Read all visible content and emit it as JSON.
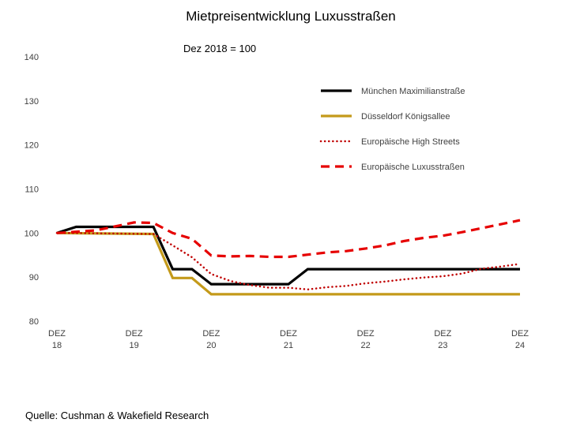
{
  "chart_data": {
    "type": "line",
    "title": "Mietpreisentwicklung Luxusstraßen",
    "subtitle": "Dez 2018 = 100",
    "xlabel": "",
    "ylabel": "",
    "ylim": [
      80,
      140
    ],
    "yticks": [
      80,
      90,
      100,
      110,
      120,
      130,
      140
    ],
    "xlim": [
      2018.917,
      2024.917
    ],
    "xticks": [
      {
        "x": 2018.917,
        "line1": "DEZ",
        "line2": "18"
      },
      {
        "x": 2019.917,
        "line1": "DEZ",
        "line2": "19"
      },
      {
        "x": 2020.917,
        "line1": "DEZ",
        "line2": "20"
      },
      {
        "x": 2021.917,
        "line1": "DEZ",
        "line2": "21"
      },
      {
        "x": 2022.917,
        "line1": "DEZ",
        "line2": "22"
      },
      {
        "x": 2023.917,
        "line1": "DEZ",
        "line2": "23"
      },
      {
        "x": 2024.917,
        "line1": "DEZ",
        "line2": "24"
      }
    ],
    "grid": false,
    "legend_position": "top-right",
    "series": [
      {
        "name": "München Maximilianstraße",
        "color": "#000000",
        "style": "solid",
        "points": [
          [
            2018.917,
            100.0
          ],
          [
            2019.167,
            101.4
          ],
          [
            2020.167,
            101.4
          ],
          [
            2020.417,
            91.8
          ],
          [
            2020.667,
            91.8
          ],
          [
            2020.917,
            88.4
          ],
          [
            2021.917,
            88.4
          ],
          [
            2022.167,
            91.8
          ],
          [
            2024.917,
            91.8
          ]
        ]
      },
      {
        "name": "Düsseldorf Königsallee",
        "color": "#C49A1A",
        "style": "solid",
        "points": [
          [
            2018.917,
            100.0
          ],
          [
            2020.167,
            99.8
          ],
          [
            2020.417,
            89.8
          ],
          [
            2020.667,
            89.8
          ],
          [
            2020.917,
            86.1
          ],
          [
            2024.917,
            86.1
          ]
        ]
      },
      {
        "name": "Europäische High Streets",
        "color": "#C00000",
        "style": "dotted",
        "points": [
          [
            2018.917,
            100.0
          ],
          [
            2019.167,
            100.0
          ],
          [
            2020.167,
            99.8
          ],
          [
            2020.417,
            97.2
          ],
          [
            2020.667,
            94.5
          ],
          [
            2020.917,
            90.7
          ],
          [
            2021.167,
            89.1
          ],
          [
            2021.417,
            88.2
          ],
          [
            2021.667,
            87.6
          ],
          [
            2021.917,
            87.6
          ],
          [
            2022.167,
            87.2
          ],
          [
            2022.417,
            87.7
          ],
          [
            2022.667,
            88.0
          ],
          [
            2022.917,
            88.6
          ],
          [
            2023.167,
            89.0
          ],
          [
            2023.417,
            89.5
          ],
          [
            2023.667,
            89.9
          ],
          [
            2023.917,
            90.2
          ],
          [
            2024.167,
            90.8
          ],
          [
            2024.417,
            91.9
          ],
          [
            2024.667,
            92.4
          ],
          [
            2024.917,
            93.0
          ]
        ]
      },
      {
        "name": "Europäische Luxusstraßen",
        "color": "#E60000",
        "style": "dashed",
        "points": [
          [
            2018.917,
            100.0
          ],
          [
            2019.167,
            100.3
          ],
          [
            2019.417,
            100.6
          ],
          [
            2019.667,
            101.5
          ],
          [
            2019.917,
            102.4
          ],
          [
            2020.167,
            102.3
          ],
          [
            2020.417,
            100.0
          ],
          [
            2020.667,
            98.7
          ],
          [
            2020.917,
            94.9
          ],
          [
            2021.167,
            94.7
          ],
          [
            2021.417,
            94.8
          ],
          [
            2021.667,
            94.6
          ],
          [
            2021.917,
            94.6
          ],
          [
            2022.167,
            95.1
          ],
          [
            2022.417,
            95.6
          ],
          [
            2022.667,
            95.9
          ],
          [
            2022.917,
            96.5
          ],
          [
            2023.167,
            97.2
          ],
          [
            2023.417,
            98.2
          ],
          [
            2023.667,
            98.9
          ],
          [
            2023.917,
            99.4
          ],
          [
            2024.167,
            100.2
          ],
          [
            2024.417,
            101.1
          ],
          [
            2024.667,
            102.0
          ],
          [
            2024.917,
            102.9
          ]
        ]
      }
    ],
    "source": "Quelle: Cushman & Wakefield Research"
  }
}
